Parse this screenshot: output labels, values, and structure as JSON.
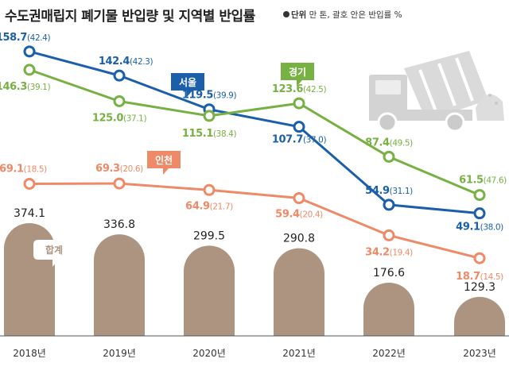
{
  "title": "수도권매립지 폐기물 반입량 및 지역별 반입률",
  "unit_label": "단위",
  "unit_text": "만 톤, 괄호 안은 반입률 %",
  "chart_data": {
    "type": "bar+line",
    "categories": [
      "2018년",
      "2019년",
      "2020년",
      "2021년",
      "2022년",
      "2023년"
    ],
    "totals": {
      "name": "합계",
      "values": [
        374.1,
        336.8,
        299.5,
        290.8,
        176.6,
        129.3
      ],
      "color": "#ad9481"
    },
    "series": [
      {
        "name": "서울",
        "color": "#1b5faa",
        "values": [
          158.7,
          142.4,
          119.5,
          107.7,
          54.9,
          49.1
        ],
        "rates": [
          42.4,
          42.3,
          39.9,
          37.0,
          31.1,
          38.0
        ]
      },
      {
        "name": "경기",
        "color": "#77b043",
        "values": [
          146.3,
          125,
          115.1,
          123.6,
          87.4,
          61.5
        ],
        "rates": [
          39.1,
          37.1,
          38.4,
          42.5,
          49.5,
          47.6
        ]
      },
      {
        "name": "인천",
        "color": "#ee8a67",
        "values": [
          69.1,
          69.3,
          64.9,
          59.4,
          34.2,
          18.7
        ],
        "rates": [
          18.5,
          20.6,
          21.7,
          20.4,
          19.4,
          14.5
        ]
      }
    ]
  }
}
